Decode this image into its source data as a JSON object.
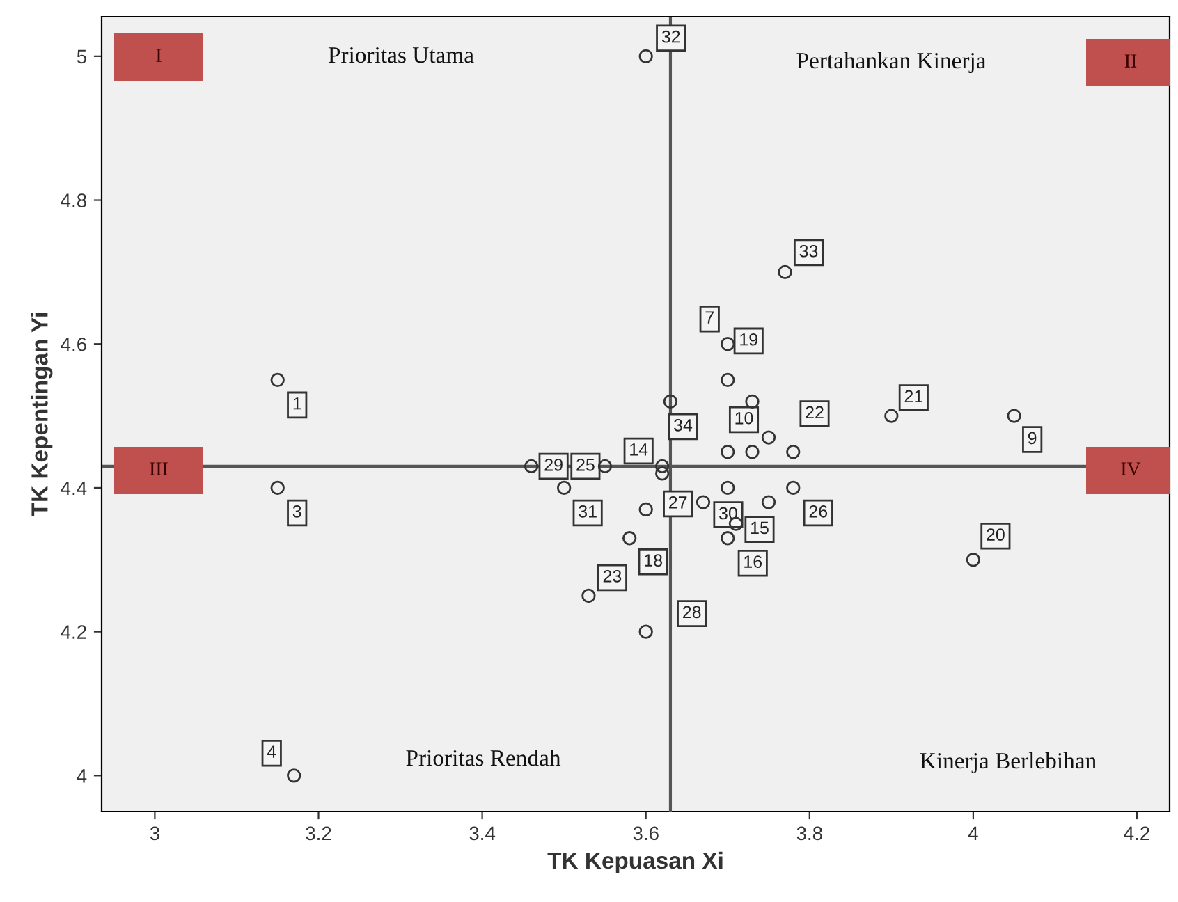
{
  "chart_data": {
    "type": "scatter",
    "xlabel": "TK Kepuasan Xi",
    "ylabel": "TK Kepentingan Yi",
    "x": [
      3.15,
      3.15,
      3.17,
      3.6,
      3.77,
      3.7,
      3.7,
      3.63,
      3.73,
      3.75,
      3.7,
      3.73,
      3.78,
      3.9,
      4.05,
      4.0,
      3.62,
      3.62,
      3.46,
      3.55,
      3.5,
      3.6,
      3.67,
      3.7,
      3.75,
      3.78,
      3.71,
      3.7,
      3.58,
      3.53,
      3.6
    ],
    "values": [
      4.55,
      4.4,
      4.0,
      5.0,
      4.7,
      4.6,
      4.55,
      4.52,
      4.52,
      4.47,
      4.45,
      4.45,
      4.45,
      4.5,
      4.5,
      4.3,
      4.43,
      4.42,
      4.43,
      4.43,
      4.4,
      4.37,
      4.38,
      4.4,
      4.38,
      4.4,
      4.35,
      4.33,
      4.33,
      4.25,
      4.2
    ],
    "color": "#333333",
    "marker": "circle",
    "xlim": [
      2.935,
      4.24
    ],
    "ylim": [
      3.95,
      5.055
    ],
    "xticks": [
      3,
      3.2,
      3.4,
      3.6,
      3.8,
      4,
      4.2
    ],
    "yticks": [
      4,
      4.2,
      4.4,
      4.6,
      4.8,
      5
    ],
    "grid": false,
    "ref_lines": [
      {
        "axis": "x",
        "value": 3.63,
        "color": "#555555"
      },
      {
        "axis": "y",
        "value": 4.43,
        "color": "#555555"
      }
    ],
    "annotations": [
      {
        "text": "1",
        "x": 3.15,
        "y": 4.55
      },
      {
        "text": "3",
        "x": 3.15,
        "y": 4.4
      },
      {
        "text": "4",
        "x": 3.17,
        "y": 4.0
      },
      {
        "text": "32",
        "x": 3.6,
        "y": 5.0
      },
      {
        "text": "33",
        "x": 3.77,
        "y": 4.7
      },
      {
        "text": "7",
        "x": 3.7,
        "y": 4.6
      },
      {
        "text": "19",
        "x": 3.7,
        "y": 4.55
      },
      {
        "text": "34",
        "x": 3.63,
        "y": 4.52
      },
      {
        "text": "10",
        "x": 3.73,
        "y": 4.52
      },
      {
        "text": "22",
        "x": 3.75,
        "y": 4.47
      },
      {
        "text": "21",
        "x": 3.9,
        "y": 4.5
      },
      {
        "text": "9",
        "x": 4.05,
        "y": 4.5
      },
      {
        "text": "20",
        "x": 4.0,
        "y": 4.3
      },
      {
        "text": "14",
        "x": 3.62,
        "y": 4.43
      },
      {
        "text": "29",
        "x": 3.46,
        "y": 4.43
      },
      {
        "text": "25",
        "x": 3.55,
        "y": 4.43
      },
      {
        "text": "31",
        "x": 3.5,
        "y": 4.4
      },
      {
        "text": "27",
        "x": 3.6,
        "y": 4.37
      },
      {
        "text": "30",
        "x": 3.67,
        "y": 4.38
      },
      {
        "text": "26",
        "x": 3.78,
        "y": 4.4
      },
      {
        "text": "15",
        "x": 3.71,
        "y": 4.35
      },
      {
        "text": "16",
        "x": 3.7,
        "y": 4.33
      },
      {
        "text": "18",
        "x": 3.58,
        "y": 4.33
      },
      {
        "text": "23",
        "x": 3.53,
        "y": 4.25
      },
      {
        "text": "28",
        "x": 3.6,
        "y": 4.2
      },
      "Prioritas Utama",
      "Pertahankan Kinerja",
      "Prioritas Rendah",
      "Kinerja Berlebihan",
      "I",
      "II",
      "III",
      "IV"
    ]
  }
}
